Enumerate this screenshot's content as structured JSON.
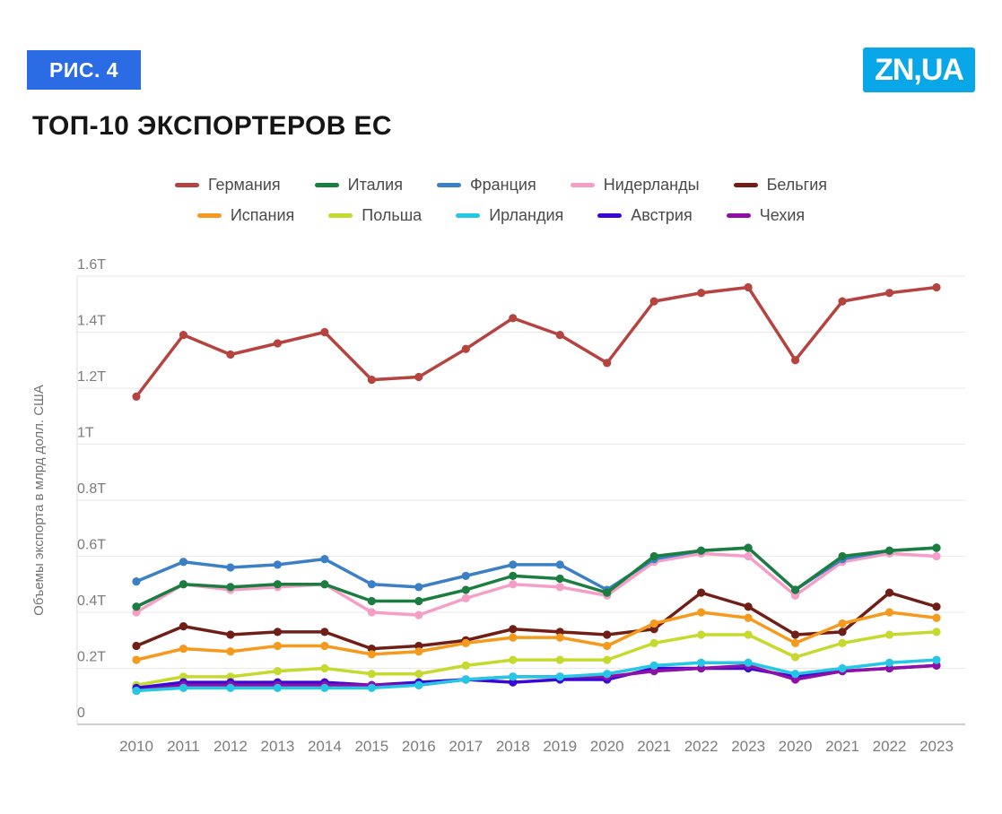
{
  "figure_label": "РИС. 4",
  "logo_text": "ZN,UA",
  "title": "ТОП-10 ЭКСПОРТЕРОВ ЕС",
  "colors": {
    "badge_background": "#2b6be4",
    "logo_background": "#09a7e8",
    "grid_line": "#e9e9e9",
    "zero_line": "#bdbdbd",
    "axis_text": "#7c7c7c"
  },
  "chart_data": {
    "type": "line",
    "title": "ТОП-10 ЭКСПОРТЕРОВ ЕС",
    "ylabel": "Объемы экспорта в млрд долл. США",
    "xlabel": "",
    "ylim": [
      0,
      1.6
    ],
    "grid": true,
    "legend_position": "top",
    "categories": [
      "2010",
      "2011",
      "2012",
      "2013",
      "2014",
      "2015",
      "2016",
      "2017",
      "2018",
      "2019",
      "2020",
      "2021",
      "2022",
      "2023",
      "2020",
      "2021",
      "2022",
      "2023"
    ],
    "y_ticks": [
      {
        "v": 0,
        "label": "0"
      },
      {
        "v": 0.2,
        "label": "0.2T"
      },
      {
        "v": 0.4,
        "label": "0.4T"
      },
      {
        "v": 0.6,
        "label": "0.6T"
      },
      {
        "v": 0.8,
        "label": "0.8T"
      },
      {
        "v": 1.0,
        "label": "1T"
      },
      {
        "v": 1.2,
        "label": "1.2T"
      },
      {
        "v": 1.4,
        "label": "1.4T"
      },
      {
        "v": 1.6,
        "label": "1.6T"
      }
    ],
    "series": [
      {
        "name": "Германия",
        "color": "#b5433f",
        "values": [
          1.17,
          1.39,
          1.32,
          1.36,
          1.4,
          1.23,
          1.24,
          1.34,
          1.45,
          1.39,
          1.29,
          1.51,
          1.54,
          1.56,
          1.3,
          1.51,
          1.54,
          1.56
        ]
      },
      {
        "name": "Италия",
        "color": "#1b7d3f",
        "values": [
          0.42,
          0.5,
          0.49,
          0.5,
          0.5,
          0.44,
          0.44,
          0.48,
          0.53,
          0.52,
          0.47,
          0.6,
          0.62,
          0.63,
          0.48,
          0.6,
          0.62,
          0.63
        ]
      },
      {
        "name": "Франция",
        "color": "#3b7fc4",
        "values": [
          0.51,
          0.58,
          0.56,
          0.57,
          0.59,
          0.5,
          0.49,
          0.53,
          0.57,
          0.57,
          0.48,
          0.59,
          0.62,
          0.63,
          0.48,
          0.59,
          0.62,
          0.63
        ]
      },
      {
        "name": "Нидерланды",
        "color": "#f59ec6",
        "values": [
          0.4,
          0.5,
          0.48,
          0.49,
          0.5,
          0.4,
          0.39,
          0.45,
          0.5,
          0.49,
          0.46,
          0.58,
          0.61,
          0.6,
          0.46,
          0.58,
          0.61,
          0.6
        ]
      },
      {
        "name": "Бельгия",
        "color": "#701f17",
        "values": [
          0.28,
          0.35,
          0.32,
          0.33,
          0.33,
          0.27,
          0.28,
          0.3,
          0.34,
          0.33,
          0.32,
          0.34,
          0.47,
          0.42,
          0.32,
          0.33,
          0.47,
          0.42
        ]
      },
      {
        "name": "Испания",
        "color": "#f59a1d",
        "values": [
          0.23,
          0.27,
          0.26,
          0.28,
          0.28,
          0.25,
          0.26,
          0.29,
          0.31,
          0.31,
          0.28,
          0.36,
          0.4,
          0.38,
          0.29,
          0.36,
          0.4,
          0.38
        ]
      },
      {
        "name": "Польша",
        "color": "#c6d92f",
        "values": [
          0.14,
          0.17,
          0.17,
          0.19,
          0.2,
          0.18,
          0.18,
          0.21,
          0.23,
          0.23,
          0.23,
          0.29,
          0.32,
          0.32,
          0.24,
          0.29,
          0.32,
          0.33
        ]
      },
      {
        "name": "Ирландия",
        "color": "#25c7e5",
        "values": [
          0.12,
          0.13,
          0.13,
          0.13,
          0.13,
          0.13,
          0.14,
          0.16,
          0.17,
          0.17,
          0.18,
          0.21,
          0.22,
          0.22,
          0.18,
          0.2,
          0.22,
          0.23
        ]
      },
      {
        "name": "Австрия",
        "color": "#3908d6",
        "values": [
          0.13,
          0.15,
          0.15,
          0.15,
          0.15,
          0.14,
          0.15,
          0.16,
          0.15,
          0.16,
          0.16,
          0.2,
          0.2,
          0.2,
          0.17,
          0.19,
          0.2,
          0.21
        ]
      },
      {
        "name": "Чехия",
        "color": "#8e10a7",
        "values": [
          0.12,
          0.14,
          0.14,
          0.14,
          0.14,
          0.14,
          0.14,
          0.16,
          0.17,
          0.17,
          0.17,
          0.19,
          0.2,
          0.21,
          0.16,
          0.19,
          0.2,
          0.21
        ]
      }
    ],
    "draw_order": [
      "Германия",
      "Нидерланды",
      "Франция",
      "Италия",
      "Бельгия",
      "Испания",
      "Польша",
      "Австрия",
      "Чехия",
      "Ирландия"
    ]
  }
}
